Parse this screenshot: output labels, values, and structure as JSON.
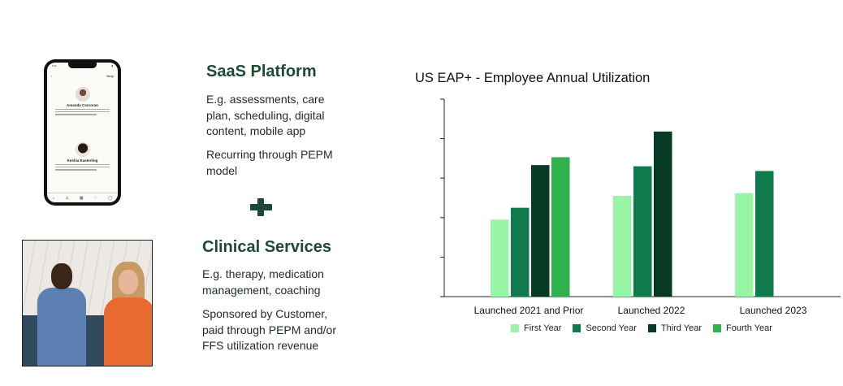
{
  "left_panel": {
    "phone": {
      "status_time": "9:41",
      "help_label": "Help",
      "providers": [
        {
          "name": "Amanda Corcoran"
        },
        {
          "name": "Keshia Easterling"
        }
      ]
    }
  },
  "saas": {
    "title": "SaaS Platform",
    "desc1": "E.g. assessments, care plan, scheduling, digital content, mobile app",
    "desc2": "Recurring through PEPM model"
  },
  "clinical": {
    "title": "Clinical Services",
    "desc1": "E.g. therapy, medication management, coaching",
    "desc2": "Sponsored by Customer, paid through PEPM and/or FFS utilization revenue"
  },
  "colors": {
    "first_year": "#98f5a5",
    "second_year": "#0f7a4c",
    "third_year": "#063a23",
    "fourth_year": "#2fb24e",
    "heading": "#1e4a33"
  },
  "chart_data": {
    "type": "bar",
    "title": "US EAP+ - Employee Annual Utilization",
    "categories": [
      "Launched 2021 and Prior",
      "Launched 2022",
      "Launched 2023"
    ],
    "series": [
      {
        "name": "First Year",
        "values": [
          19.5,
          25.5,
          26.2
        ]
      },
      {
        "name": "Second Year",
        "values": [
          22.5,
          33.0,
          31.8
        ]
      },
      {
        "name": "Third Year",
        "values": [
          33.3,
          41.8,
          null
        ]
      },
      {
        "name": "Fourth Year",
        "values": [
          35.3,
          null,
          null
        ]
      }
    ],
    "ylim": [
      0,
      50
    ],
    "yticks": [
      0,
      10,
      20,
      30,
      40,
      50
    ],
    "ytick_labels_shown": false,
    "legend_position": "bottom",
    "grid": false
  }
}
